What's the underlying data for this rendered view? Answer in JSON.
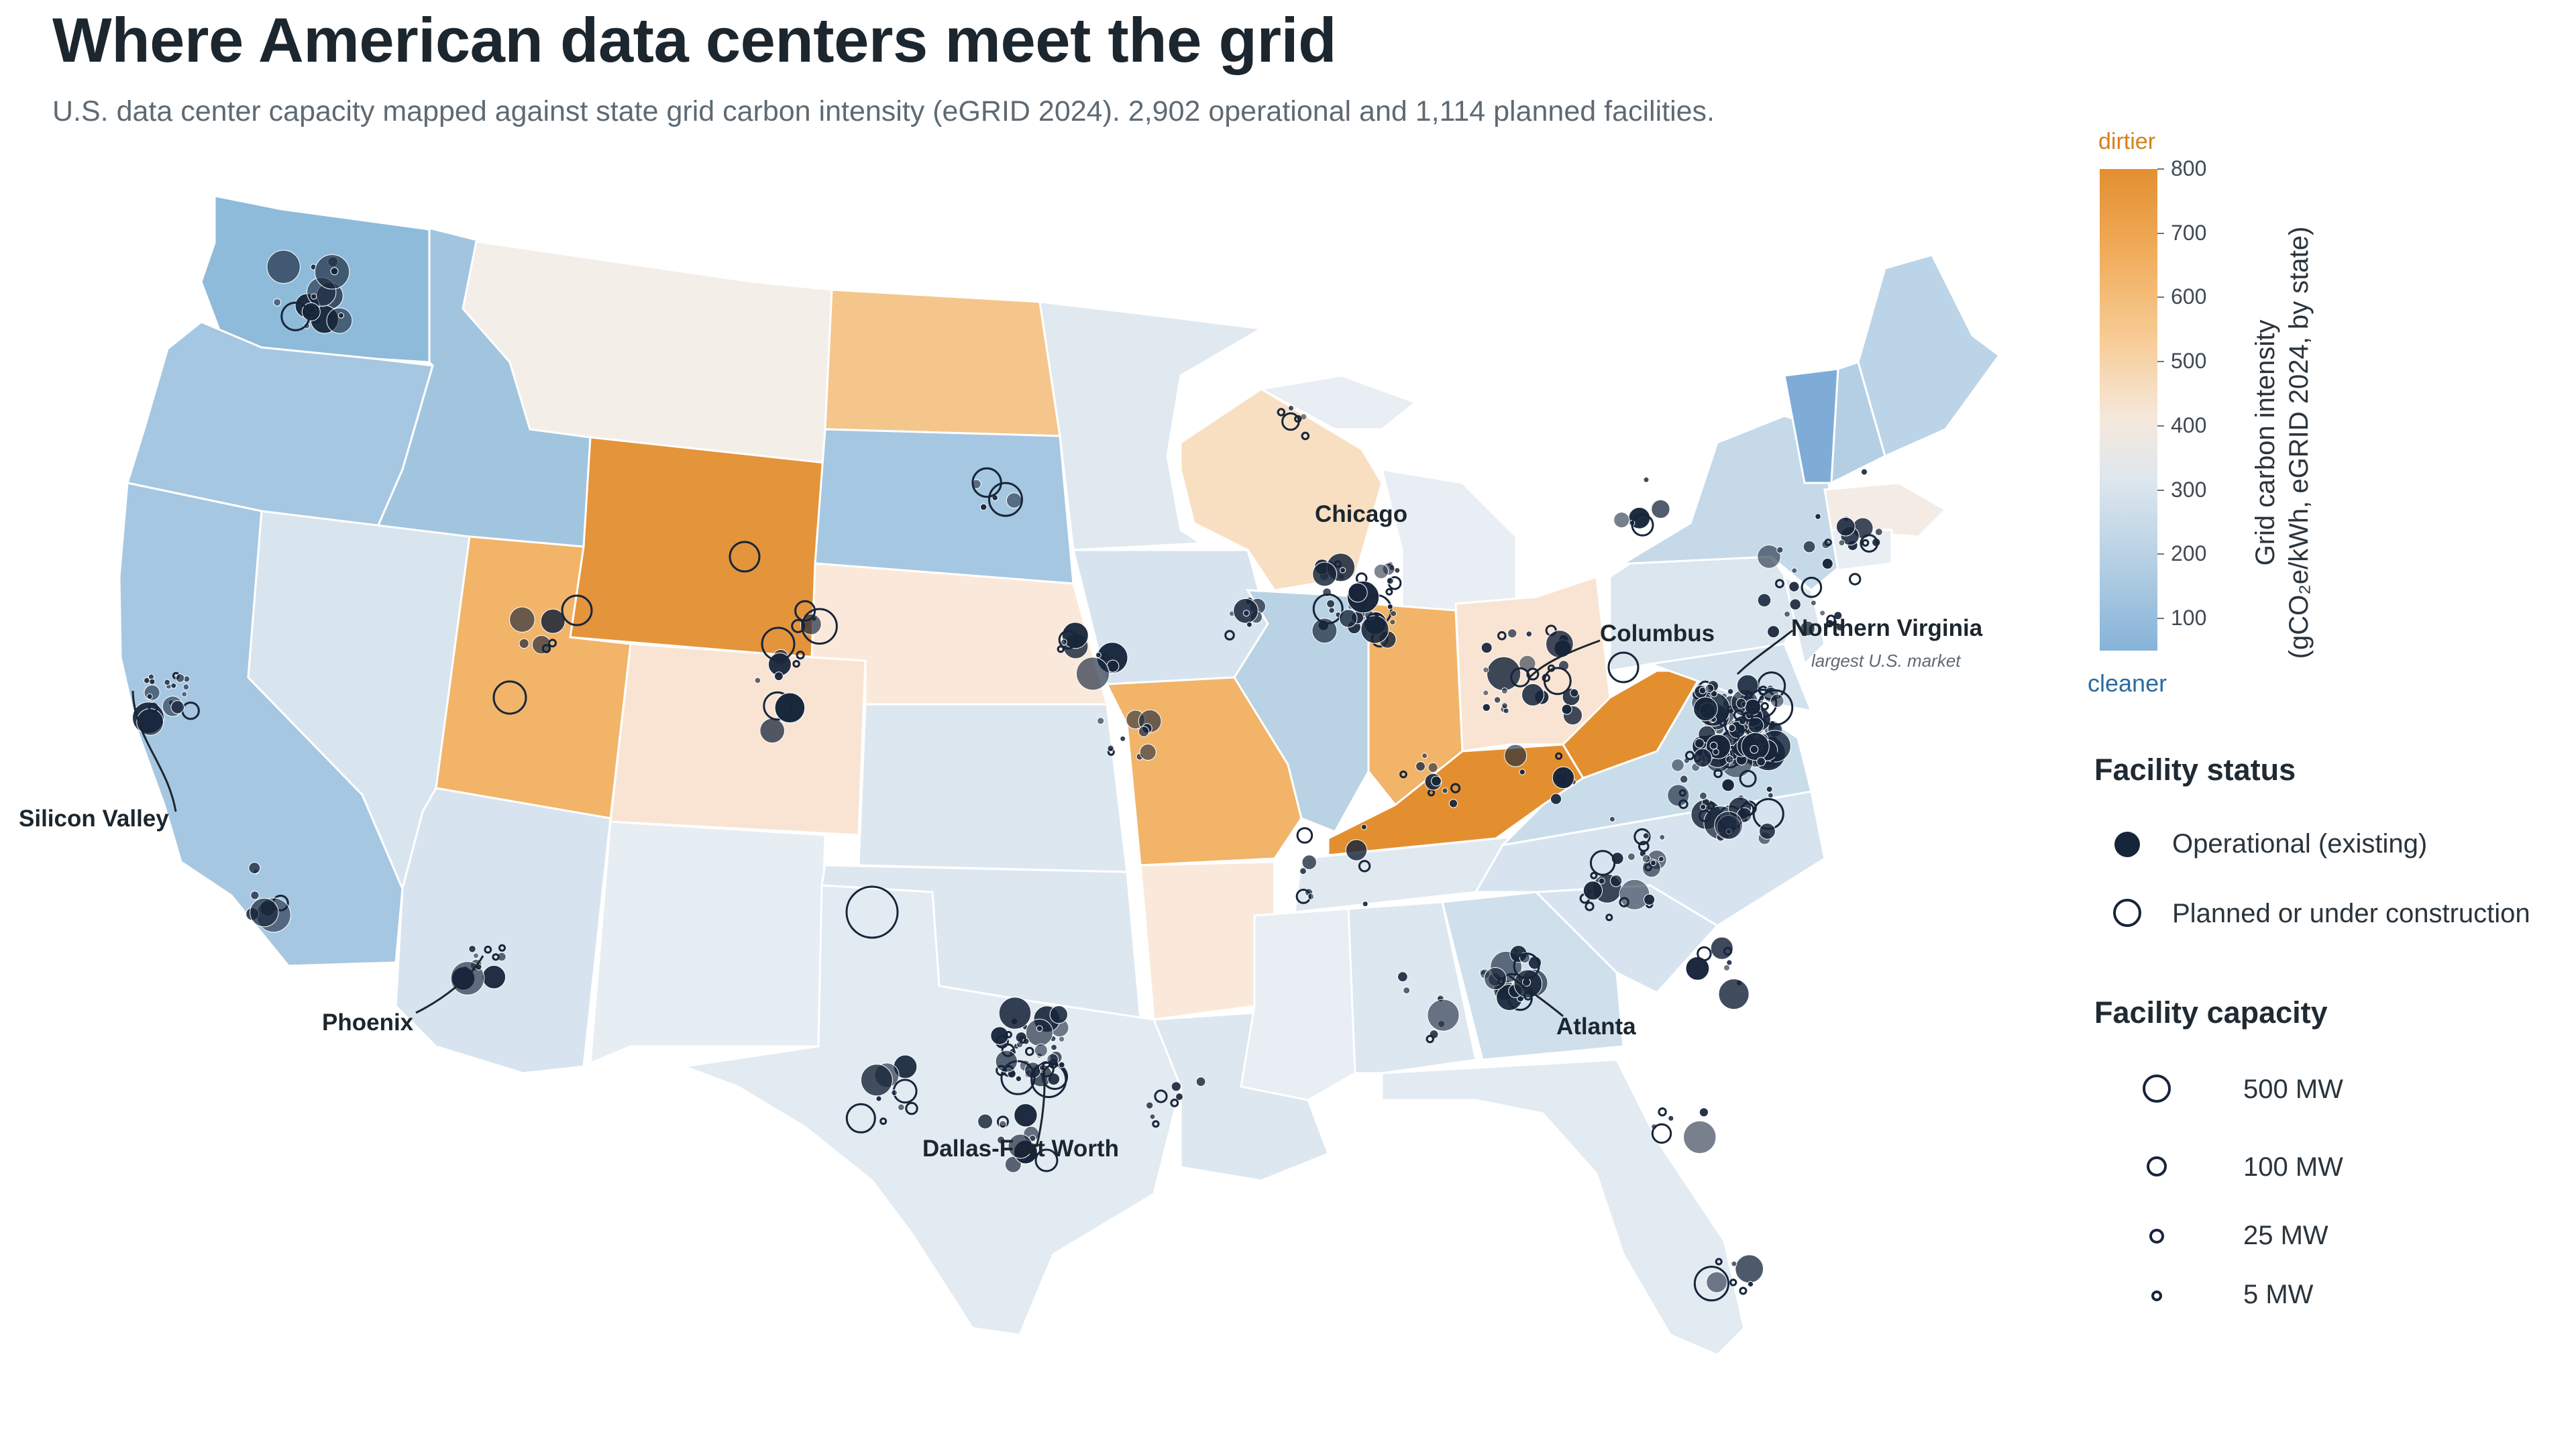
{
  "header": {
    "title": "Where American data centers meet the grid",
    "subtitle": "U.S. data center capacity mapped against state grid carbon intensity (eGRID 2024). 2,902 operational and 1,114 planned facilities."
  },
  "colorbar": {
    "top_label": "dirtier",
    "bottom_label": "cleaner",
    "title_line1": "Grid carbon intensity",
    "title_line2": "(gCO₂e/kWh, eGRID 2024, by state)",
    "ticks": [
      "800",
      "700",
      "600",
      "500",
      "400",
      "300",
      "200",
      "100"
    ],
    "tick_values": [
      800,
      700,
      600,
      500,
      400,
      300,
      200,
      100
    ],
    "range": [
      50,
      800
    ],
    "colors": {
      "dirty": "#e38f30",
      "mid": "#f5e8dc",
      "clean": "#86b3d9"
    }
  },
  "legend_status": {
    "title": "Facility status",
    "items": [
      {
        "label": "Operational (existing)",
        "symbol": "filled-circle"
      },
      {
        "label": "Planned or under construction",
        "symbol": "open-circle"
      }
    ]
  },
  "legend_capacity": {
    "title": "Facility capacity",
    "items": [
      {
        "label": "500 MW",
        "mw": 500
      },
      {
        "label": "100 MW",
        "mw": 100
      },
      {
        "label": "25 MW",
        "mw": 25
      },
      {
        "label": "5 MW",
        "mw": 5
      }
    ]
  },
  "annotations": [
    {
      "label": "Silicon Valley"
    },
    {
      "label": "Phoenix"
    },
    {
      "label": "Dallas-Fort Worth"
    },
    {
      "label": "Chicago"
    },
    {
      "label": "Columbus"
    },
    {
      "label": "Atlanta"
    },
    {
      "label": "Northern Virginia",
      "note": "largest U.S. market"
    }
  ],
  "colors": {
    "operational_marker": "#17253a",
    "planned_marker_stroke": "#17253a",
    "state_border": "#ffffff",
    "title": "#1c262e"
  }
}
